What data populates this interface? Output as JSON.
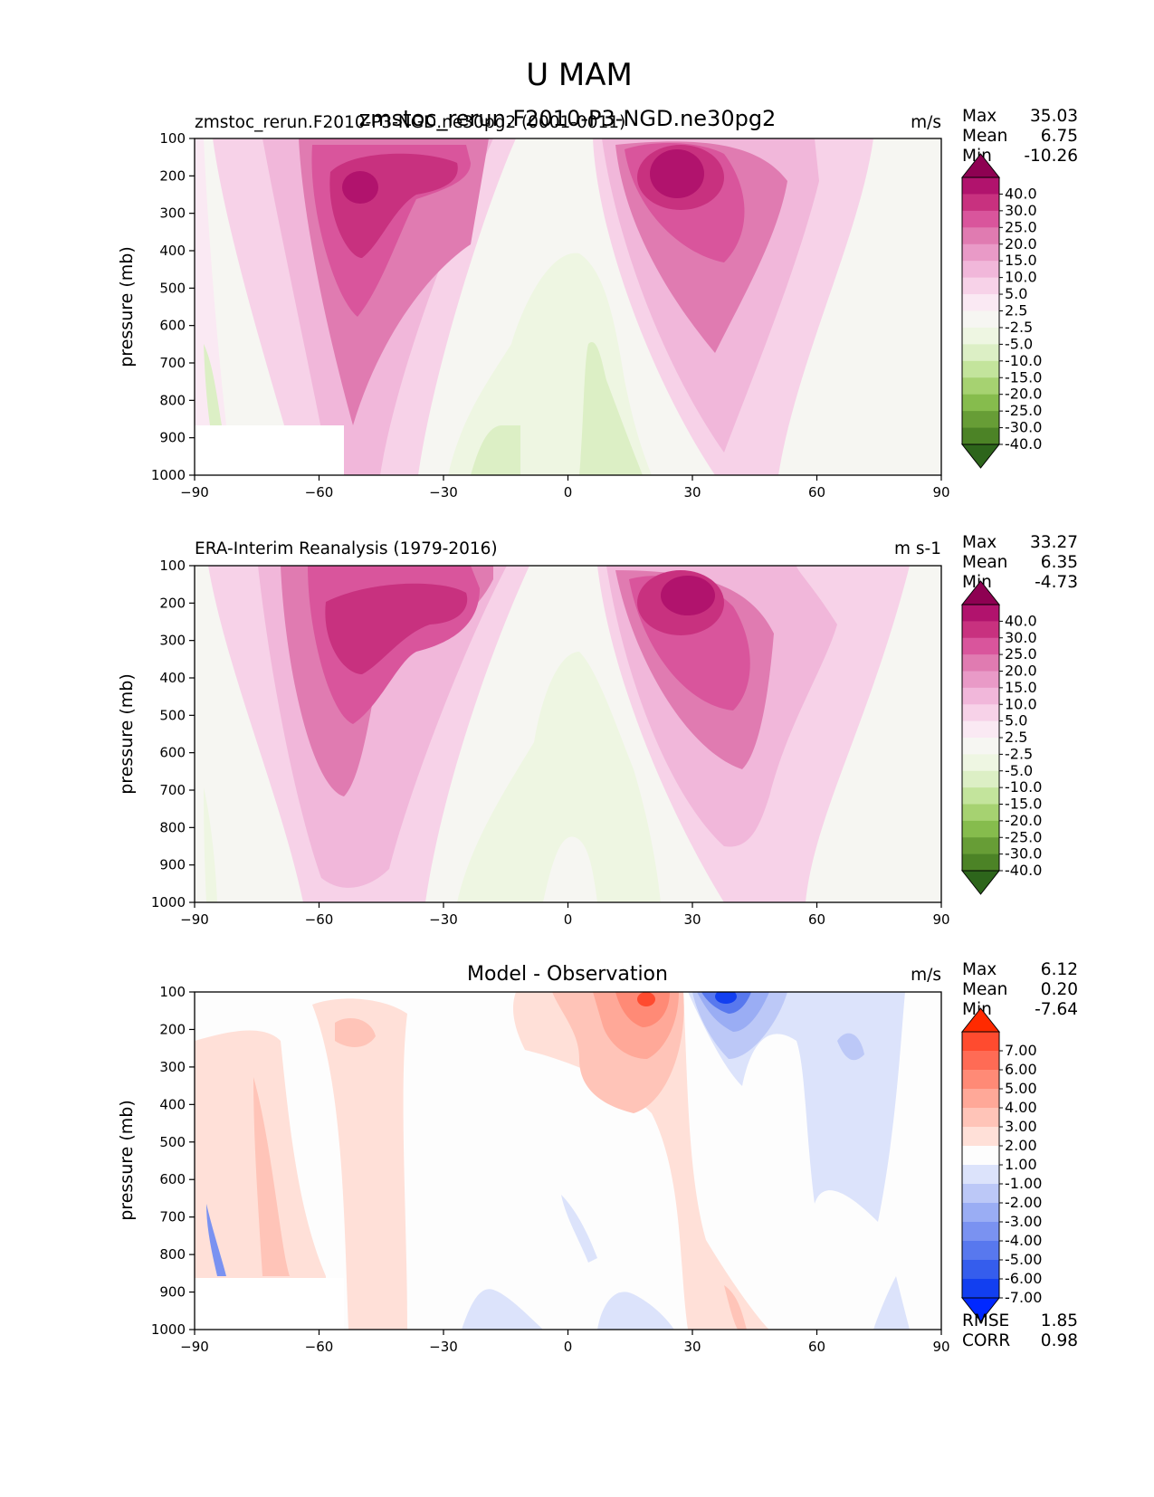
{
  "figure": {
    "title": "U MAM",
    "overlap_title": "zmstoc_rerun.F2010-P3-NGD.ne30pg2"
  },
  "chart_data": [
    {
      "type": "contour",
      "name": "test",
      "left_title": "zmstoc_rerun.F2010-P3-NGD.ne30pg2 (0001-0011)",
      "center_title": "",
      "units": "m/s",
      "xlabel": "",
      "ylabel": "pressure (mb)",
      "xlim": [
        -90,
        90
      ],
      "xticks": [
        "−90",
        "−60",
        "−30",
        "0",
        "30",
        "60",
        "90"
      ],
      "ylim": [
        1000,
        100
      ],
      "yticks": [
        "100",
        "200",
        "300",
        "400",
        "500",
        "600",
        "700",
        "800",
        "900",
        "1000"
      ],
      "stats": [
        {
          "label": "Max",
          "value": "35.03"
        },
        {
          "label": "Mean",
          "value": "6.75"
        },
        {
          "label": "Min",
          "value": "-10.26"
        }
      ],
      "colorbar_levels": [
        "40.0",
        "30.0",
        "25.0",
        "20.0",
        "15.0",
        "10.0",
        "5.0",
        "2.5",
        "-2.5",
        "-5.0",
        "-10.0",
        "-15.0",
        "-20.0",
        "-25.0",
        "-30.0",
        "-40.0"
      ],
      "colorbar_colors": [
        "#8e0152",
        "#b1136d",
        "#c8317f",
        "#d9559c",
        "#e07bb1",
        "#e99ac7",
        "#f1b7da",
        "#f7d2e8",
        "#fae9f3",
        "#f6f6f2",
        "#eef6e2",
        "#dcefc5",
        "#c3e49c",
        "#a6d271",
        "#86bc4d",
        "#679d36",
        "#4c8326",
        "#2d651b"
      ],
      "jets": [
        {
          "lat": -50,
          "p": 220,
          "peak": 35
        },
        {
          "lat": 27,
          "p": 200,
          "peak": 35
        }
      ]
    },
    {
      "type": "contour",
      "name": "reference",
      "left_title": "ERA-Interim Reanalysis (1979-2016)",
      "center_title": "",
      "units": "m s-1",
      "xlabel": "",
      "ylabel": "pressure (mb)",
      "xlim": [
        -90,
        90
      ],
      "xticks": [
        "−90",
        "−60",
        "−30",
        "0",
        "30",
        "60",
        "90"
      ],
      "ylim": [
        1000,
        100
      ],
      "yticks": [
        "100",
        "200",
        "300",
        "400",
        "500",
        "600",
        "700",
        "800",
        "900",
        "1000"
      ],
      "stats": [
        {
          "label": "Max",
          "value": "33.27"
        },
        {
          "label": "Mean",
          "value": "6.35"
        },
        {
          "label": "Min",
          "value": "-4.73"
        }
      ],
      "colorbar_levels": [
        "40.0",
        "30.0",
        "25.0",
        "20.0",
        "15.0",
        "10.0",
        "5.0",
        "2.5",
        "-2.5",
        "-5.0",
        "-10.0",
        "-15.0",
        "-20.0",
        "-25.0",
        "-30.0",
        "-40.0"
      ],
      "colorbar_colors": [
        "#8e0152",
        "#b1136d",
        "#c8317f",
        "#d9559c",
        "#e07bb1",
        "#e99ac7",
        "#f1b7da",
        "#f7d2e8",
        "#fae9f3",
        "#f6f6f2",
        "#eef6e2",
        "#dcefc5",
        "#c3e49c",
        "#a6d271",
        "#86bc4d",
        "#679d36",
        "#4c8326",
        "#2d651b"
      ],
      "jets": [
        {
          "lat": -48,
          "p": 220,
          "peak": 33
        },
        {
          "lat": 29,
          "p": 200,
          "peak": 33
        }
      ]
    },
    {
      "type": "contour",
      "name": "difference",
      "left_title": "",
      "center_title": "Model - Observation",
      "units": "m/s",
      "xlabel": "",
      "ylabel": "pressure (mb)",
      "xlim": [
        -90,
        90
      ],
      "xticks": [
        "−90",
        "−60",
        "−30",
        "0",
        "30",
        "60",
        "90"
      ],
      "ylim": [
        1000,
        100
      ],
      "yticks": [
        "100",
        "200",
        "300",
        "400",
        "500",
        "600",
        "700",
        "800",
        "900",
        "1000"
      ],
      "stats": [
        {
          "label": "Max",
          "value": "6.12"
        },
        {
          "label": "Mean",
          "value": "0.20"
        },
        {
          "label": "Min",
          "value": "-7.64"
        }
      ],
      "extra_stats": [
        {
          "label": "RMSE",
          "value": "1.85"
        },
        {
          "label": "CORR",
          "value": "0.98"
        }
      ],
      "colorbar_levels": [
        "7.00",
        "6.00",
        "5.00",
        "4.00",
        "3.00",
        "2.00",
        "1.00",
        "-1.00",
        "-2.00",
        "-3.00",
        "-4.00",
        "-5.00",
        "-6.00",
        "-7.00"
      ],
      "colorbar_colors": [
        "#ff2a00",
        "#ff4b2f",
        "#ff6b55",
        "#ff8a76",
        "#ffa898",
        "#ffc4b8",
        "#ffe0d8",
        "#fdfdfd",
        "#dce3fb",
        "#bcc8f7",
        "#9aadf4",
        "#7a92f1",
        "#5878ee",
        "#355ded",
        "#123ff0",
        "#0028ff"
      ]
    }
  ]
}
